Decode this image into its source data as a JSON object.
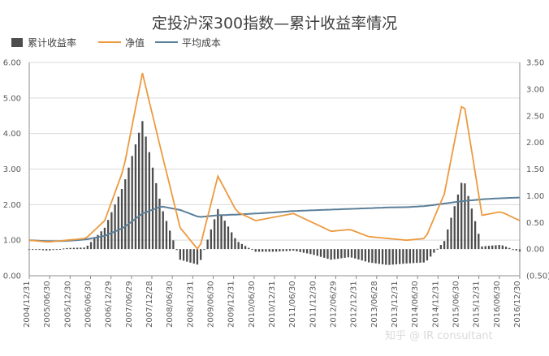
{
  "chart_data": {
    "type": "bar+line",
    "title": "定投沪深300指数—累计收益率情况",
    "legend": [
      "累计收益率",
      "净值",
      "平均成本"
    ],
    "colors": {
      "bars": "#4d4d4d",
      "nav": "#ed9a3f",
      "avg_cost": "#5b7f99",
      "grid": "#d9d9d9",
      "axis": "#8c8c8c",
      "text": "#595959"
    },
    "left_axis": {
      "range": [
        0,
        6
      ],
      "ticks": [
        "0.00",
        "1.00",
        "2.00",
        "3.00",
        "4.00",
        "5.00",
        "6.00"
      ]
    },
    "right_axis": {
      "range": [
        -0.5,
        3.5
      ],
      "ticks": [
        "(0.50)",
        "0.00",
        "0.50",
        "1.00",
        "1.50",
        "2.00",
        "2.50",
        "3.00",
        "3.50"
      ]
    },
    "x_labels": [
      "2004/12/31",
      "2005/06/30",
      "2005/12/30",
      "2006/06/30",
      "2006/12/29",
      "2007/06/29",
      "2007/12/28",
      "2008/06/30",
      "2008/12/31",
      "2009/06/30",
      "2009/12/31",
      "2010/06/30",
      "2010/12/31",
      "2011/06/30",
      "2011/12/30",
      "2012/06/29",
      "2012/12/31",
      "2013/06/28",
      "2013/12/31",
      "2014/06/30",
      "2014/12/31",
      "2015/06/30",
      "2015/12/31",
      "2016/06/30",
      "2016/12/30"
    ],
    "points_per_interval": 6,
    "nav_anchors": [
      1.0,
      0.95,
      1.0,
      1.05,
      1.55,
      3.0,
      5.7,
      3.5,
      1.35,
      0.7,
      2.8,
      1.8,
      1.55,
      1.65,
      1.75,
      1.5,
      1.25,
      1.3,
      1.1,
      1.05,
      1.0,
      1.05,
      2.3,
      5.0,
      1.7,
      1.8,
      1.55
    ],
    "avg_cost_anchors": [
      1.0,
      0.97,
      0.98,
      1.02,
      1.12,
      1.35,
      1.75,
      1.95,
      1.85,
      1.65,
      1.7,
      1.72,
      1.75,
      1.78,
      1.82,
      1.84,
      1.86,
      1.88,
      1.9,
      1.92,
      1.93,
      1.96,
      2.03,
      2.1,
      2.15,
      2.18,
      2.2
    ],
    "return_anchors": [
      0.0,
      -0.03,
      0.02,
      0.03,
      0.4,
      1.2,
      2.4,
      0.8,
      -0.2,
      -0.3,
      0.75,
      0.15,
      -0.05,
      -0.05,
      -0.03,
      -0.1,
      -0.2,
      -0.15,
      -0.25,
      -0.3,
      -0.27,
      -0.25,
      0.15,
      1.35,
      0.05,
      0.08,
      -0.05
    ],
    "watermark": "知乎 @ IR consultant"
  }
}
